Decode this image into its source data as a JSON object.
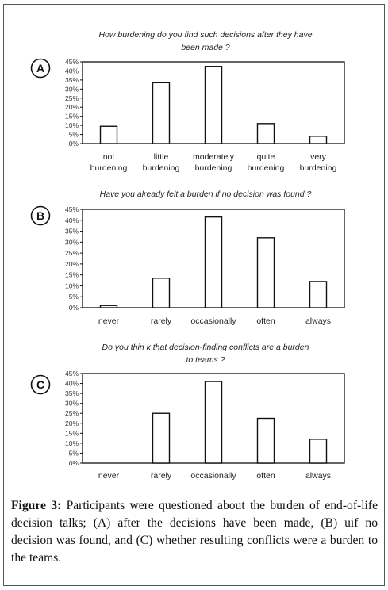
{
  "caption": {
    "label": "Figure 3:",
    "text": "Participants were questioned about the burden of end-of-life decision talks; (A) after the decisions have been made, (B) uif no decision was found, and (C) whether resulting conflicts were a burden to the teams."
  },
  "chart_data": [
    {
      "type": "bar",
      "panel_label": "A",
      "title": "How burdening do you find such decisions after they have been made ?",
      "title_lines": [
        "How burdening do you find such decisions after they have",
        "been made ?"
      ],
      "categories": [
        "not burdening",
        "little burdening",
        "moderately burdening",
        "quite burdening",
        "very burdening"
      ],
      "category_lines": [
        [
          "not",
          "burdening"
        ],
        [
          "little",
          "burdening"
        ],
        [
          "moderately",
          "burdening"
        ],
        [
          "quite",
          "burdening"
        ],
        [
          "very",
          "burdening"
        ]
      ],
      "values": [
        9.5,
        33.5,
        42.5,
        11,
        4
      ],
      "ylim": [
        0,
        45
      ],
      "yticks": [
        "0%",
        "5%",
        "10%",
        "15%",
        "20%",
        "25%",
        "30%",
        "35%",
        "40%",
        "45%"
      ],
      "grid": false
    },
    {
      "type": "bar",
      "panel_label": "B",
      "title": "Have you already felt a burden if no decision was found ?",
      "title_lines": [
        "Have you already felt a burden if no decision was found ?"
      ],
      "categories": [
        "never",
        "rarely",
        "occasionally",
        "often",
        "always"
      ],
      "category_lines": [
        [
          "never"
        ],
        [
          "rarely"
        ],
        [
          "occasionally"
        ],
        [
          "often"
        ],
        [
          "always"
        ]
      ],
      "values": [
        1,
        13.5,
        41.5,
        32,
        12
      ],
      "ylim": [
        0,
        45
      ],
      "yticks": [
        "0%",
        "5%",
        "10%",
        "15%",
        "20%",
        "25%",
        "30%",
        "35%",
        "40%",
        "45%"
      ],
      "grid": false
    },
    {
      "type": "bar",
      "panel_label": "C",
      "title": "Do you thin k that decision-finding conflicts are a burden to teams ?",
      "title_lines": [
        "Do you thin k that decision-finding conflicts are a burden",
        "to teams ?"
      ],
      "categories": [
        "never",
        "rarely",
        "occasionally",
        "often",
        "always"
      ],
      "category_lines": [
        [
          "never"
        ],
        [
          "rarely"
        ],
        [
          "occasionally"
        ],
        [
          "often"
        ],
        [
          "always"
        ]
      ],
      "values": [
        0,
        25,
        41,
        22.5,
        12
      ],
      "ylim": [
        0,
        45
      ],
      "yticks": [
        "0%",
        "5%",
        "10%",
        "15%",
        "20%",
        "25%",
        "30%",
        "35%",
        "40%",
        "45%"
      ],
      "grid": false
    }
  ]
}
